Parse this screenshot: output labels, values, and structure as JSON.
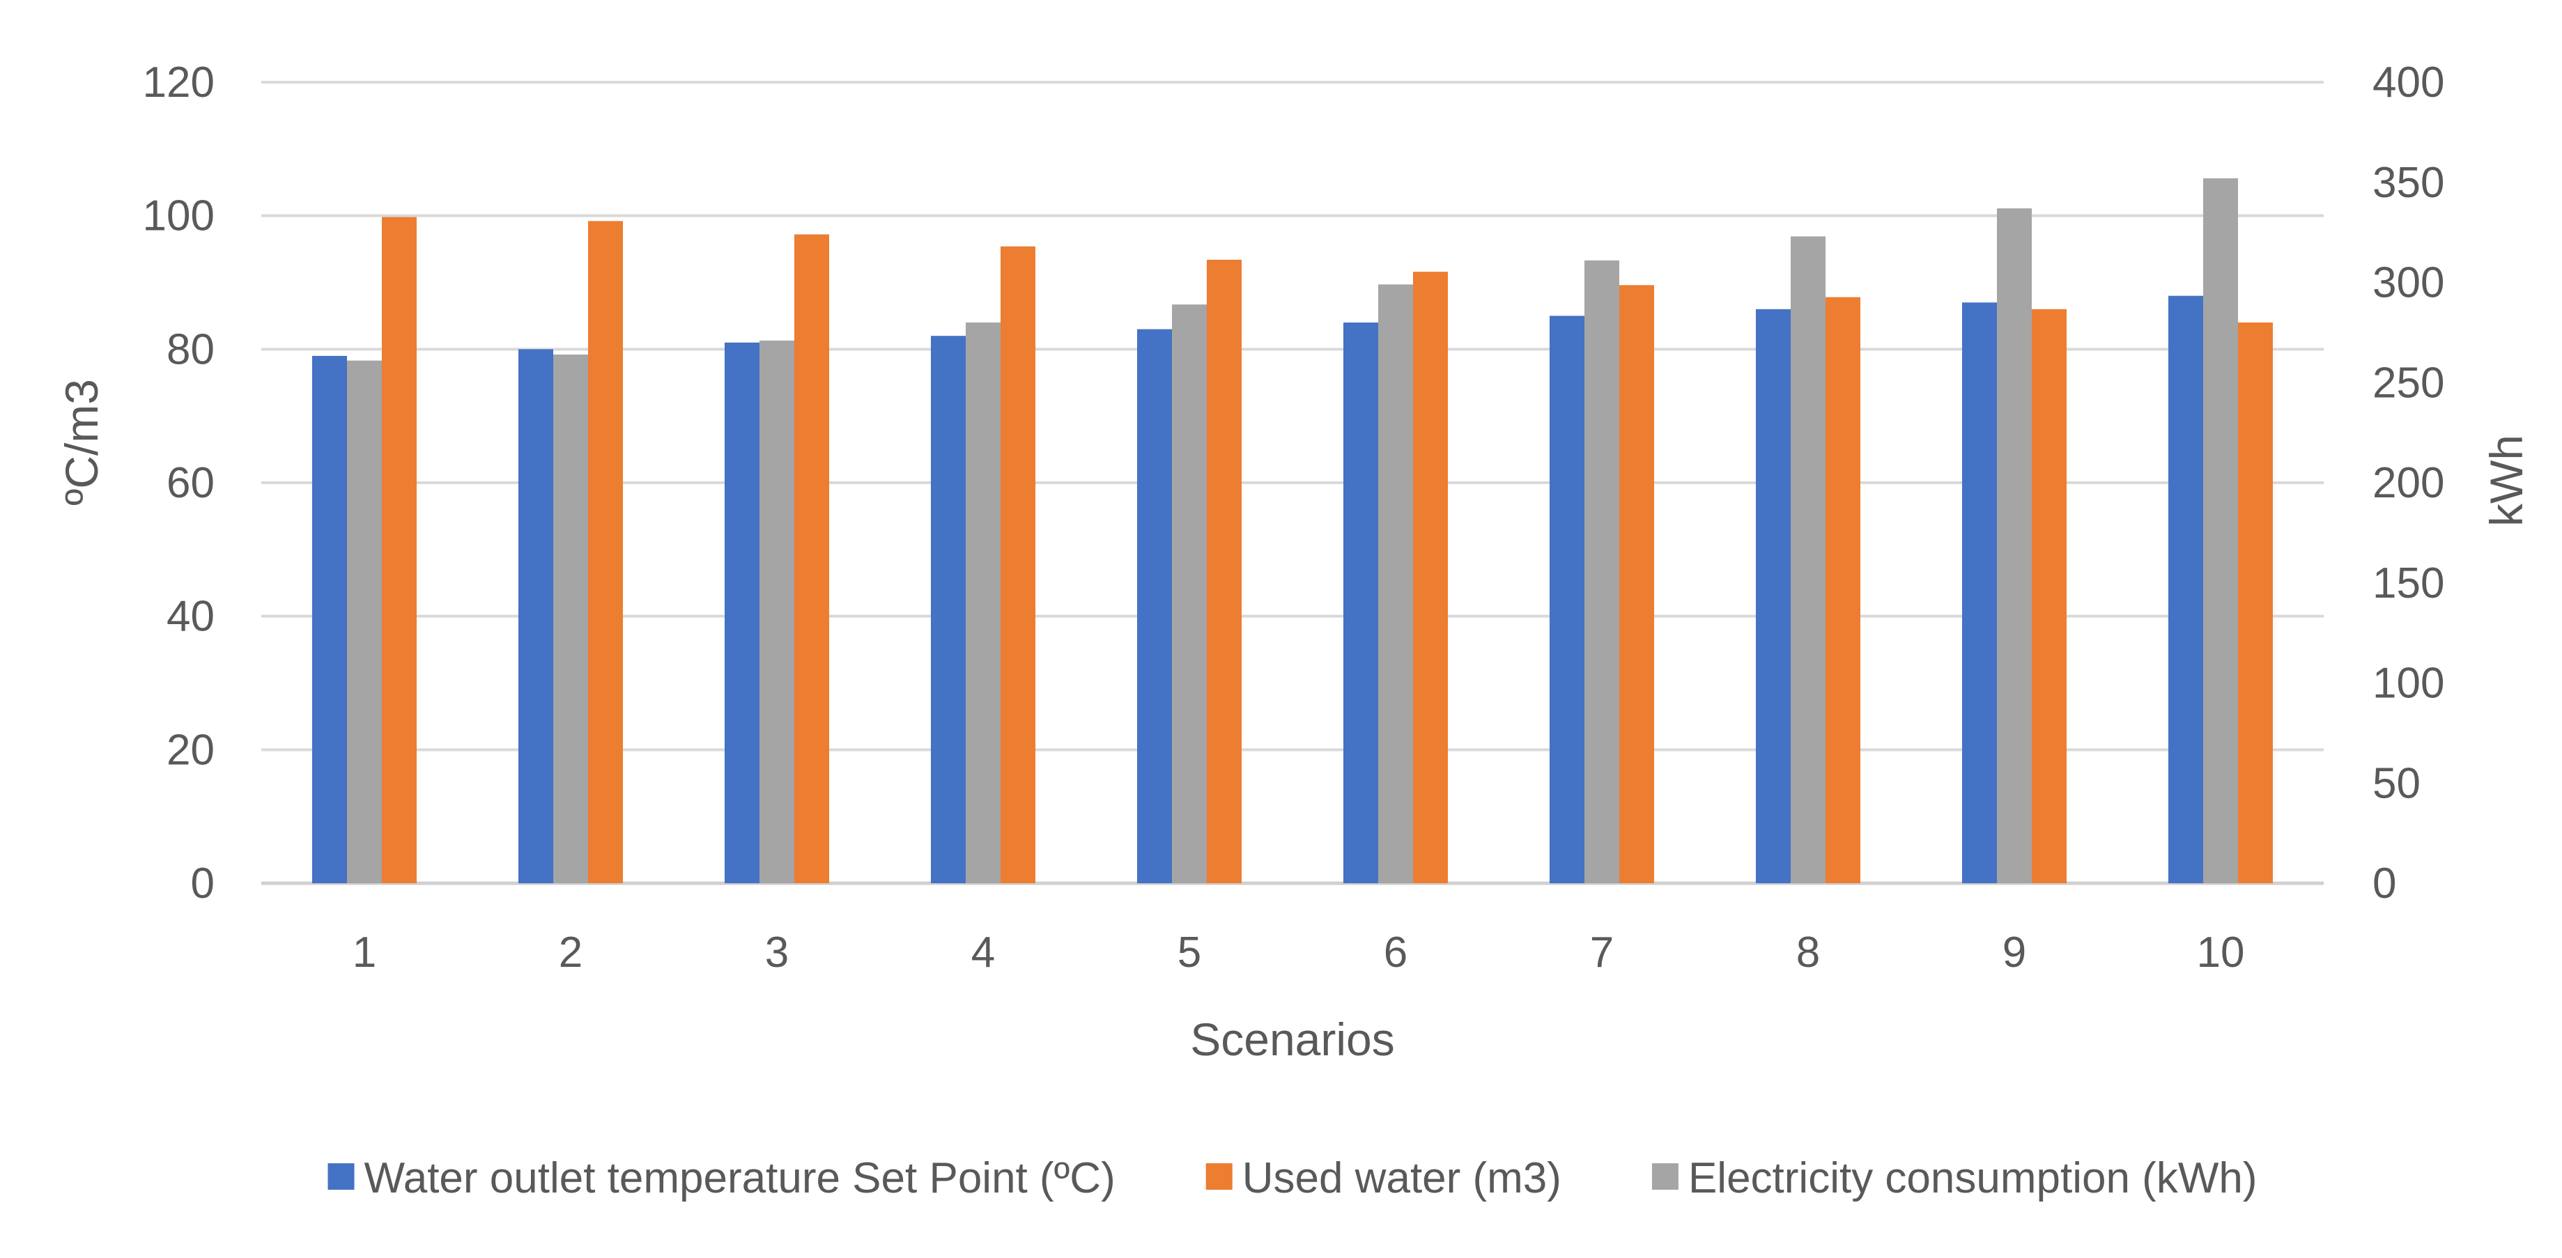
{
  "chart_data": {
    "type": "bar",
    "title": "",
    "xlabel": "Scenarios",
    "ylabel": "ºC/m3",
    "y2label": "kWh",
    "categories": [
      "1",
      "2",
      "3",
      "4",
      "5",
      "6",
      "7",
      "8",
      "9",
      "10"
    ],
    "ylim": [
      0,
      120
    ],
    "y2lim": [
      0,
      400
    ],
    "yticks": [
      0,
      20,
      40,
      60,
      80,
      100,
      120
    ],
    "y2ticks": [
      0,
      50,
      100,
      150,
      200,
      250,
      300,
      350,
      400
    ],
    "grid": true,
    "legend_position": "bottom",
    "series": [
      {
        "name": "Water outlet temperature Set Point (ºC)",
        "axis": "left",
        "color": "#4472C4",
        "values": [
          79,
          80,
          81,
          82,
          83,
          84,
          85,
          86,
          87,
          88
        ]
      },
      {
        "name": "Electricity consumption (kWh)",
        "axis": "right",
        "color": "#A5A5A5",
        "values": [
          261,
          264,
          271,
          280,
          289,
          299,
          311,
          323,
          337,
          352
        ]
      },
      {
        "name": "Used water (m3)",
        "axis": "left",
        "color": "#ED7D31",
        "values": [
          99.8,
          99.2,
          97.2,
          95.4,
          93.4,
          91.6,
          89.6,
          87.8,
          86,
          84
        ]
      }
    ],
    "legend_order": [
      0,
      2,
      1
    ]
  }
}
